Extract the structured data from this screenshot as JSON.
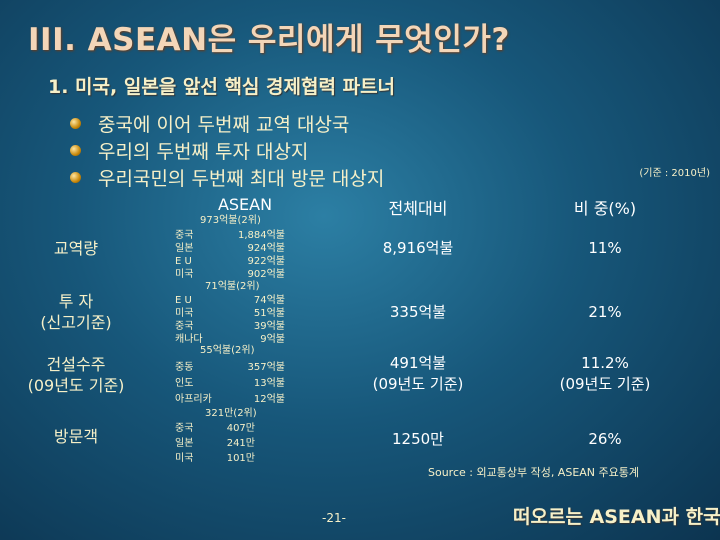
{
  "title": "III. ASEAN은 우리에게 무엇인가?",
  "subtitle": "1. 미국, 일본을 앞선 핵심 경제협력 파트너",
  "bullets": [
    "중국에 이어 두번째 교역 대상국",
    "우리의 두번째  투자 대상지",
    "우리국민의  두번째 최대 방문 대상지"
  ],
  "basis_note": "(기준 : 2010년)",
  "table": {
    "headers": [
      "ASEAN",
      "전체대비",
      "비 중(%)"
    ],
    "rows": [
      {
        "label": [
          "교역량"
        ],
        "asean_top": "973억불(2위)",
        "details": [
          [
            "중국",
            "1,884억불"
          ],
          [
            "일본",
            "924억불"
          ],
          [
            "E U",
            "922억불"
          ],
          [
            "미국",
            "902억불"
          ]
        ],
        "total": [
          "8,916억불"
        ],
        "share": [
          "11%"
        ]
      },
      {
        "label": [
          "투 자",
          "(신고기준)"
        ],
        "asean_top": "71억불(2위)",
        "details": [
          [
            "E U",
            "74억불"
          ],
          [
            "미국",
            "51억불"
          ],
          [
            "중국",
            "39억불"
          ],
          [
            "캐나다",
            "9억불"
          ]
        ],
        "total": [
          "335억불"
        ],
        "share": [
          "21%"
        ]
      },
      {
        "label": [
          "건설수주",
          "(09년도 기준)"
        ],
        "asean_top": "55억불(2위)",
        "details": [
          [
            "중동",
            "357억불"
          ],
          [
            "인도",
            "13억불"
          ],
          [
            "아프리카",
            "12억불"
          ]
        ],
        "total": [
          "491억불",
          "(09년도 기준)"
        ],
        "share": [
          "11.2%",
          "(09년도 기준)"
        ]
      },
      {
        "label": [
          "방문객"
        ],
        "asean_top": "321만(2위)",
        "details": [
          [
            "중국",
            "407만"
          ],
          [
            "일본",
            "241만"
          ],
          [
            "미국",
            "101만"
          ]
        ],
        "total": [
          "1250만"
        ],
        "share": [
          "26%"
        ]
      }
    ]
  },
  "source": "Source : 외교통상부 작성, ASEAN 주요통계",
  "page_number": "-21-",
  "footer_title": "떠오르는 ASEAN과 한국",
  "colors": {
    "title": "#f3d6b8",
    "text": "#f6f0c8",
    "bg_center": "#2c7fa4",
    "bg_edge": "#0c3450"
  }
}
